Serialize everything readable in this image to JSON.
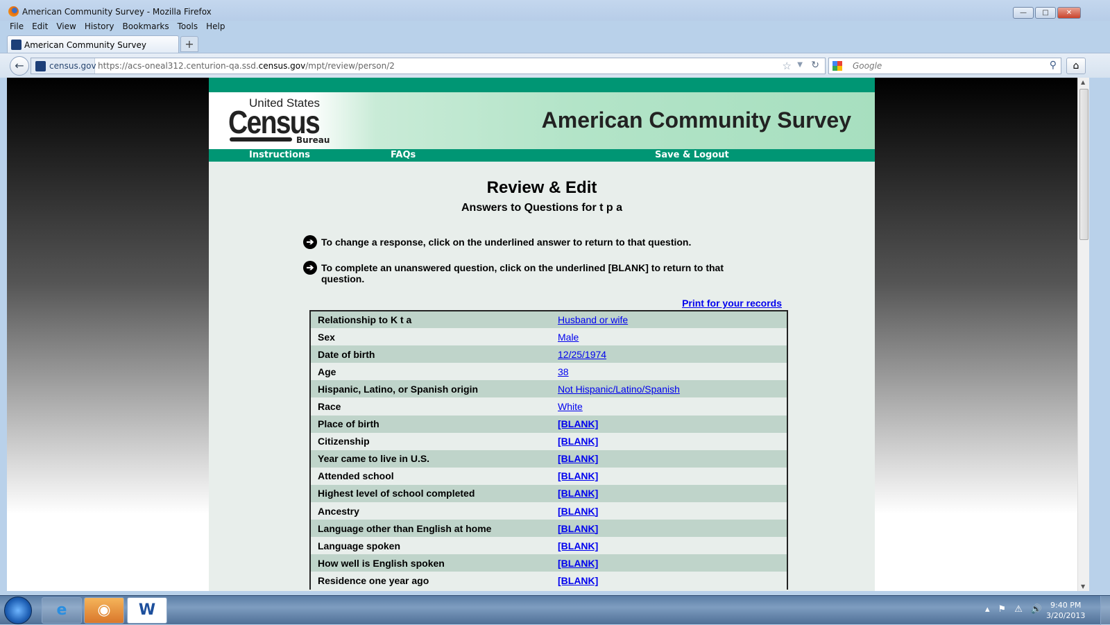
{
  "window": {
    "title": "American Community Survey - Mozilla Firefox"
  },
  "menu": [
    "File",
    "Edit",
    "View",
    "History",
    "Bookmarks",
    "Tools",
    "Help"
  ],
  "tab": {
    "title": "American Community Survey",
    "new_tab": "+"
  },
  "urlbar": {
    "site": "census.gov",
    "url_prefix": "https://acs-oneal312.centurion-qa.ssd.",
    "url_domain": "census.gov",
    "url_path": "/mpt/review/person/2"
  },
  "search": {
    "placeholder": "Google"
  },
  "page": {
    "logo": {
      "line1": "United States",
      "line2": "Census",
      "line3": "Bureau"
    },
    "banner_title": "American Community Survey",
    "nav": [
      "Instructions",
      "FAQs",
      "Save & Logout"
    ],
    "title": "Review & Edit",
    "subtitle": "Answers to Questions for t p a",
    "instructions": [
      "To change a response, click on the underlined answer to return to that question.",
      "To complete an unanswered question, click on the underlined [BLANK] to return to that question."
    ],
    "print_link": "Print for your records",
    "rows": [
      {
        "q": "Relationship to K t a",
        "a": "Husband or wife"
      },
      {
        "q": "Sex",
        "a": "Male"
      },
      {
        "q": "Date of birth",
        "a": "12/25/1974"
      },
      {
        "q": "Age",
        "a": "38"
      },
      {
        "q": "Hispanic, Latino, or Spanish origin",
        "a": "Not Hispanic/Latino/Spanish"
      },
      {
        "q": "Race",
        "a": "White"
      },
      {
        "q": "Place of birth",
        "a": "[BLANK]"
      },
      {
        "q": "Citizenship",
        "a": "[BLANK]"
      },
      {
        "q": "Year came to live in U.S.",
        "a": "[BLANK]"
      },
      {
        "q": "Attended school",
        "a": "[BLANK]"
      },
      {
        "q": "Highest level of school completed",
        "a": "[BLANK]"
      },
      {
        "q": "Ancestry",
        "a": "[BLANK]"
      },
      {
        "q": "Language other than English at home",
        "a": "[BLANK]"
      },
      {
        "q": "Language spoken",
        "a": "[BLANK]"
      },
      {
        "q": "How well is English spoken",
        "a": "[BLANK]"
      },
      {
        "q": "Residence one year ago",
        "a": "[BLANK]"
      }
    ]
  },
  "taskbar": {
    "time": "9:40 PM",
    "date": "3/20/2013"
  },
  "colors": {
    "green": "#009674",
    "link": "#0000ee",
    "row_alt": "#bfd4ca"
  }
}
